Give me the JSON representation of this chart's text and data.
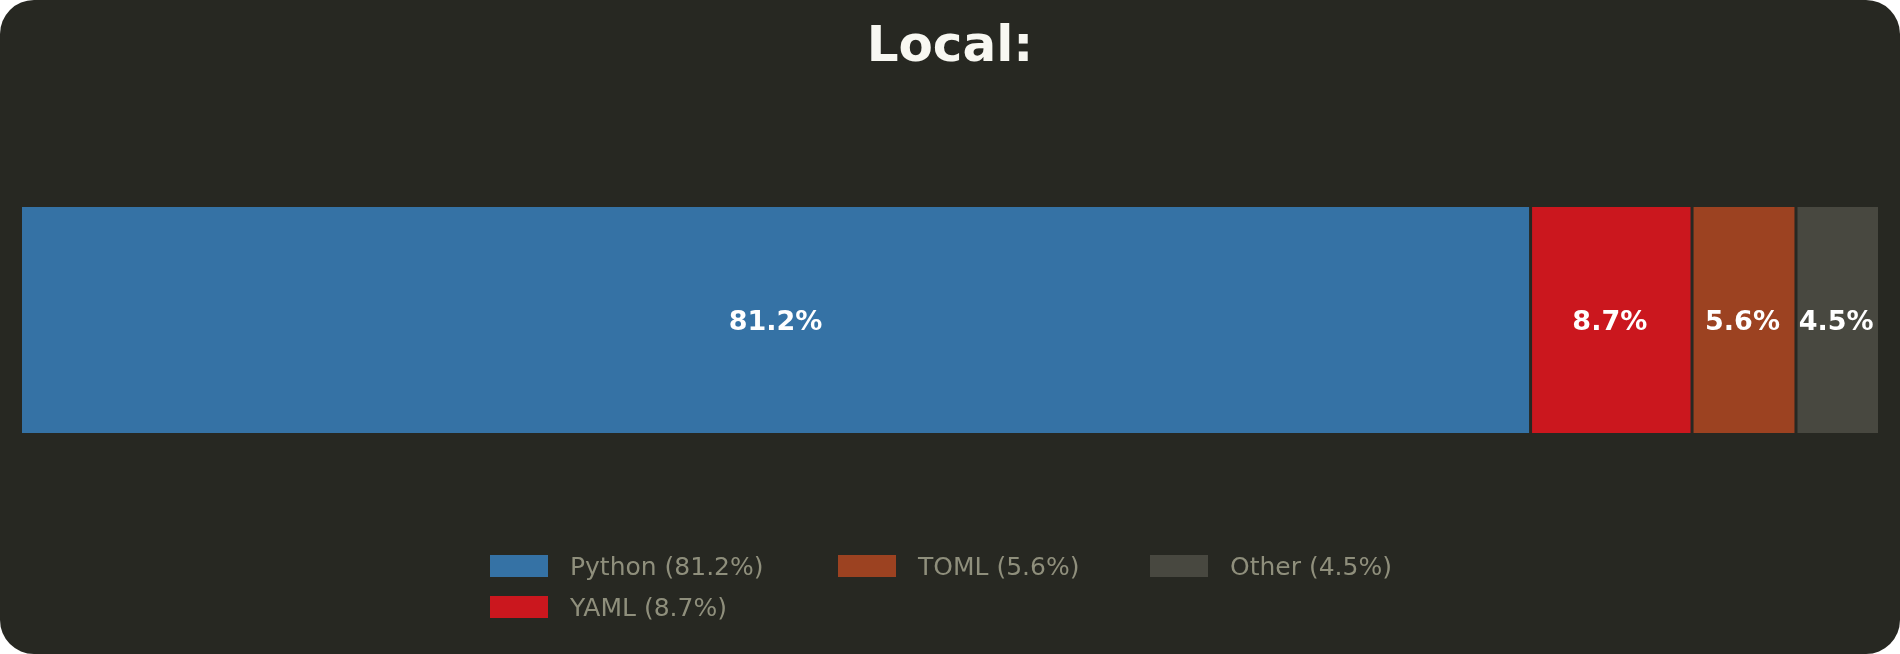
{
  "chart_data": {
    "type": "bar",
    "orientation": "horizontal",
    "stacked": true,
    "title": "Local:",
    "categories": [
      null
    ],
    "xlim": [
      0,
      100
    ],
    "legend": "bottom",
    "series": [
      {
        "name": "Python (81.2%)",
        "color": "#3572a5",
        "values": [
          81.2
        ],
        "value_labels": [
          "81.2%"
        ]
      },
      {
        "name": "YAML (8.7%)",
        "color": "#cb171e",
        "values": [
          8.7
        ],
        "value_labels": [
          "8.7%"
        ]
      },
      {
        "name": "TOML (5.6%)",
        "color": "#9c4221",
        "values": [
          5.6
        ],
        "value_labels": [
          "5.6%"
        ]
      },
      {
        "name": "Other (4.5%)",
        "color": "#484840",
        "values": [
          4.5
        ],
        "value_labels": [
          "4.5%"
        ]
      }
    ]
  }
}
